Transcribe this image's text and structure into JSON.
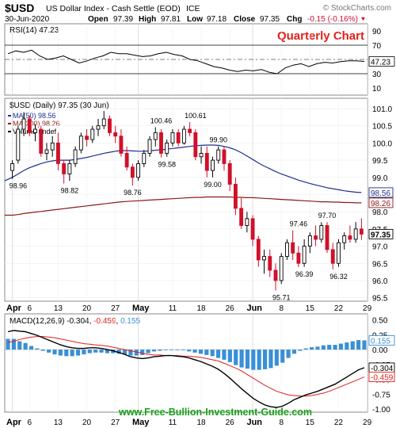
{
  "header": {
    "symbol": "$USD",
    "name": "US Dollar Index - Cash Settle (EOD)",
    "exchange": "ICE",
    "copyright": "© StockCharts.com",
    "date": "30-Jun-2020",
    "open_label": "Open",
    "open": "97.39",
    "high_label": "High",
    "high": "97.81",
    "low_label": "Low",
    "low": "97.18",
    "close_label": "Close",
    "close": "97.35",
    "chg_label": "Chg",
    "chg": "-0.15 (-0.16%)"
  },
  "annotation": "Quarterly Chart",
  "watermark": "www.Free-Bullion-Investment-Guide.com",
  "colors": {
    "up": "#000000",
    "down": "#d0102a",
    "ma50": "#1f2f8f",
    "ma200": "#8b1a1a",
    "rsi": "#000000",
    "macd": "#000000",
    "signal": "#e0201a",
    "hist": "#3a8fd6",
    "accent": "#e0201a"
  },
  "chart_data": [
    {
      "type": "line",
      "panel": "RSI",
      "title": "RSI(14) 47.23",
      "series": [
        {
          "name": "RSI(14)",
          "values": [
            58,
            62,
            60,
            63,
            55,
            50,
            52,
            55,
            50,
            45,
            48,
            52,
            55,
            60,
            58,
            58,
            56,
            54,
            55,
            58,
            60,
            57,
            55,
            50,
            48,
            44,
            40,
            38,
            35,
            33,
            35,
            34,
            36,
            32,
            30,
            38,
            42,
            44,
            40,
            44,
            46,
            45,
            47,
            48,
            48,
            47.23
          ]
        }
      ],
      "ylim": [
        0,
        100
      ],
      "ticks": [
        10,
        30,
        70,
        90
      ],
      "current_value": "47.23"
    },
    {
      "type": "candlestick",
      "panel": "Price",
      "title": "$USD (Daily) 97.35 (30 Jun)",
      "legend": [
        {
          "label": "MA(50) 98.56",
          "color": "#1f2f8f"
        },
        {
          "label": "MA(200) 98.26",
          "color": "#8b1a1a"
        },
        {
          "label": "Volume undef",
          "color": "#000000"
        }
      ],
      "x_ticks": [
        {
          "label": "Apr",
          "i": 0,
          "bold": true
        },
        {
          "label": "6",
          "i": 3
        },
        {
          "label": "13",
          "i": 8
        },
        {
          "label": "20",
          "i": 13
        },
        {
          "label": "27",
          "i": 18
        },
        {
          "label": "May",
          "i": 22,
          "bold": true
        },
        {
          "label": "11",
          "i": 28
        },
        {
          "label": "18",
          "i": 33
        },
        {
          "label": "26",
          "i": 38
        },
        {
          "label": "Jun",
          "i": 42,
          "bold": true
        },
        {
          "label": "8",
          "i": 47
        },
        {
          "label": "15",
          "i": 52
        },
        {
          "label": "22",
          "i": 57
        },
        {
          "label": "29",
          "i": 62
        }
      ],
      "ylim": [
        95.4,
        101.3
      ],
      "y_ticks": [
        95.5,
        96.0,
        96.5,
        97.0,
        97.5,
        98.0,
        98.5,
        99.0,
        99.5,
        100.0,
        100.5,
        101.0
      ],
      "candles": [
        [
          99.2,
          99.5,
          98.96,
          99.4
        ],
        [
          99.5,
          100.5,
          99.4,
          100.4
        ],
        [
          100.4,
          100.9,
          100.2,
          100.7
        ],
        [
          100.7,
          100.8,
          100.2,
          100.3
        ],
        [
          100.3,
          100.55,
          100.05,
          100.4
        ],
        [
          100.4,
          100.5,
          99.6,
          99.7
        ],
        [
          99.7,
          100.0,
          99.5,
          99.8
        ],
        [
          99.8,
          100.2,
          99.6,
          100.0
        ],
        [
          100.0,
          100.3,
          99.2,
          99.4
        ],
        [
          99.4,
          99.5,
          98.82,
          99.1
        ],
        [
          99.1,
          99.5,
          98.9,
          99.4
        ],
        [
          99.4,
          99.9,
          99.3,
          99.8
        ],
        [
          99.8,
          100.3,
          99.7,
          100.2
        ],
        [
          100.2,
          100.4,
          99.9,
          100.1
        ],
        [
          100.1,
          100.5,
          100.0,
          100.4
        ],
        [
          100.4,
          100.7,
          100.2,
          100.5
        ],
        [
          100.5,
          100.93,
          100.4,
          100.7
        ],
        [
          100.7,
          100.8,
          100.2,
          100.3
        ],
        [
          100.3,
          100.5,
          100.0,
          100.2
        ],
        [
          100.2,
          100.4,
          99.6,
          99.7
        ],
        [
          99.7,
          99.9,
          99.2,
          99.3
        ],
        [
          99.3,
          99.4,
          98.76,
          99.0
        ],
        [
          99.0,
          99.5,
          98.9,
          99.4
        ],
        [
          99.4,
          99.8,
          99.3,
          99.7
        ],
        [
          99.7,
          100.2,
          99.6,
          100.1
        ],
        [
          100.1,
          100.46,
          99.9,
          100.3
        ],
        [
          100.3,
          100.4,
          99.58,
          99.7
        ],
        [
          99.7,
          100.1,
          99.6,
          100.0
        ],
        [
          100.0,
          100.4,
          99.9,
          100.3
        ],
        [
          100.3,
          100.4,
          99.9,
          100.0
        ],
        [
          100.0,
          100.5,
          99.95,
          100.4
        ],
        [
          100.4,
          100.61,
          100.2,
          100.3
        ],
        [
          100.3,
          100.4,
          99.5,
          99.6
        ],
        [
          99.6,
          99.9,
          99.4,
          99.7
        ],
        [
          99.7,
          99.9,
          99.0,
          99.2
        ],
        [
          99.2,
          99.6,
          99.0,
          99.5
        ],
        [
          99.5,
          99.9,
          99.4,
          99.8
        ],
        [
          99.8,
          99.9,
          99.2,
          99.4
        ],
        [
          99.4,
          99.5,
          98.6,
          98.8
        ],
        [
          98.8,
          99.0,
          97.9,
          98.1
        ],
        [
          98.1,
          98.4,
          97.5,
          97.6
        ],
        [
          97.6,
          98.0,
          97.4,
          97.8
        ],
        [
          97.8,
          97.9,
          97.0,
          97.2
        ],
        [
          97.2,
          97.3,
          96.4,
          96.6
        ],
        [
          96.6,
          96.9,
          96.2,
          96.7
        ],
        [
          96.7,
          96.9,
          96.1,
          96.3
        ],
        [
          96.3,
          96.5,
          95.71,
          96.0
        ],
        [
          96.0,
          96.8,
          95.9,
          96.7
        ],
        [
          96.7,
          97.2,
          96.6,
          97.1
        ],
        [
          97.1,
          97.46,
          96.6,
          96.8
        ],
        [
          96.8,
          97.0,
          96.39,
          96.5
        ],
        [
          96.5,
          97.2,
          96.4,
          97.0
        ],
        [
          97.0,
          97.4,
          96.8,
          97.3
        ],
        [
          97.3,
          97.6,
          97.0,
          97.2
        ],
        [
          97.2,
          97.7,
          97.1,
          97.6
        ],
        [
          97.6,
          97.7,
          96.8,
          96.9
        ],
        [
          96.9,
          97.1,
          96.32,
          96.5
        ],
        [
          96.5,
          97.2,
          96.4,
          97.1
        ],
        [
          97.1,
          97.4,
          96.9,
          97.3
        ],
        [
          97.3,
          97.6,
          97.1,
          97.2
        ],
        [
          97.2,
          97.7,
          97.1,
          97.5
        ],
        [
          97.5,
          97.81,
          97.18,
          97.35
        ]
      ],
      "labels": [
        {
          "text": "98.96",
          "i": 1,
          "value": 98.96,
          "pos": "below"
        },
        {
          "text": "98.82",
          "i": 10,
          "value": 98.82,
          "pos": "below"
        },
        {
          "text": "98.76",
          "i": 21,
          "value": 98.76,
          "pos": "below"
        },
        {
          "text": "100.46",
          "i": 26,
          "value": 100.46,
          "pos": "above"
        },
        {
          "text": "99.58",
          "i": 27,
          "value": 99.58,
          "pos": "below"
        },
        {
          "text": "100.61",
          "i": 32,
          "value": 100.61,
          "pos": "above"
        },
        {
          "text": "99.90",
          "i": 36,
          "value": 99.9,
          "pos": "above"
        },
        {
          "text": "99.00",
          "i": 35,
          "value": 99.0,
          "pos": "below"
        },
        {
          "text": "95.71",
          "i": 47,
          "value": 95.71,
          "pos": "below"
        },
        {
          "text": "97.46",
          "i": 50,
          "value": 97.46,
          "pos": "above"
        },
        {
          "text": "96.39",
          "i": 51,
          "value": 96.39,
          "pos": "below"
        },
        {
          "text": "97.70",
          "i": 55,
          "value": 97.7,
          "pos": "above"
        },
        {
          "text": "96.32",
          "i": 57,
          "value": 96.32,
          "pos": "below"
        }
      ],
      "ma50": [
        99.0,
        99.1,
        99.2,
        99.28,
        99.34,
        99.4,
        99.45,
        99.48,
        99.5,
        99.5,
        99.5,
        99.52,
        99.55,
        99.58,
        99.62,
        99.66,
        99.7,
        99.73,
        99.76,
        99.78,
        99.78,
        99.77,
        99.76,
        99.76,
        99.77,
        99.79,
        99.8,
        99.82,
        99.84,
        99.86,
        99.88,
        99.9,
        99.92,
        99.93,
        99.94,
        99.94,
        99.93,
        99.9,
        99.86,
        99.8,
        99.72,
        99.62,
        99.52,
        99.42,
        99.33,
        99.25,
        99.17,
        99.1,
        99.04,
        98.98,
        98.92,
        98.87,
        98.82,
        98.78,
        98.74,
        98.7,
        98.67,
        98.64,
        98.61,
        98.59,
        98.57,
        98.56
      ],
      "ma200": [
        97.9,
        97.92,
        97.95,
        97.97,
        97.99,
        98.01,
        98.03,
        98.05,
        98.07,
        98.09,
        98.11,
        98.13,
        98.15,
        98.17,
        98.19,
        98.21,
        98.23,
        98.25,
        98.27,
        98.29,
        98.3,
        98.31,
        98.32,
        98.33,
        98.34,
        98.35,
        98.36,
        98.37,
        98.38,
        98.39,
        98.4,
        98.41,
        98.42,
        98.42,
        98.43,
        98.43,
        98.43,
        98.43,
        98.43,
        98.42,
        98.42,
        98.41,
        98.41,
        98.4,
        98.39,
        98.38,
        98.37,
        98.36,
        98.35,
        98.34,
        98.33,
        98.32,
        98.31,
        98.3,
        98.29,
        98.29,
        98.28,
        98.28,
        98.27,
        98.27,
        98.26,
        98.26
      ],
      "markers": [
        {
          "text": "98.56",
          "value": 98.56,
          "color": "#1f2f8f"
        },
        {
          "text": "98.26",
          "value": 98.26,
          "color": "#8b1a1a"
        },
        {
          "text": "97.35",
          "value": 97.35,
          "color": "#000000"
        }
      ]
    },
    {
      "type": "line",
      "panel": "MACD",
      "title_prefix": "MACD(12,26,9)",
      "title_macd": "-0.304",
      "title_signal": "-0.459",
      "title_hist": "0.155",
      "ylim": [
        -1.05,
        0.6
      ],
      "y_ticks": [
        0.5,
        0.25,
        0.0,
        -0.25,
        -0.5,
        -0.75,
        -1.0
      ],
      "tick_labels": [
        "0.50",
        "0.25",
        "0.00",
        "-0.25",
        "-0.50",
        "-0.75",
        "-1.00"
      ],
      "series": [
        {
          "name": "MACD",
          "values": [
            0.3,
            0.32,
            0.31,
            0.3,
            0.27,
            0.24,
            0.2,
            0.16,
            0.12,
            0.08,
            0.05,
            0.03,
            0.02,
            0.02,
            0.03,
            0.03,
            0.02,
            0.0,
            -0.02,
            -0.05,
            -0.08,
            -0.12,
            -0.14,
            -0.15,
            -0.14,
            -0.12,
            -0.11,
            -0.1,
            -0.1,
            -0.11,
            -0.12,
            -0.14,
            -0.17,
            -0.2,
            -0.24,
            -0.28,
            -0.33,
            -0.4,
            -0.48,
            -0.57,
            -0.66,
            -0.74,
            -0.82,
            -0.88,
            -0.93,
            -0.96,
            -0.97,
            -0.95,
            -0.9,
            -0.84,
            -0.8,
            -0.76,
            -0.73,
            -0.7,
            -0.66,
            -0.62,
            -0.58,
            -0.52,
            -0.46,
            -0.4,
            -0.34,
            -0.304
          ]
        },
        {
          "name": "Signal",
          "values": [
            0.12,
            0.14,
            0.17,
            0.19,
            0.21,
            0.22,
            0.22,
            0.21,
            0.2,
            0.18,
            0.16,
            0.14,
            0.12,
            0.1,
            0.09,
            0.08,
            0.07,
            0.06,
            0.04,
            0.02,
            0.0,
            -0.02,
            -0.04,
            -0.06,
            -0.08,
            -0.09,
            -0.09,
            -0.1,
            -0.1,
            -0.1,
            -0.11,
            -0.11,
            -0.12,
            -0.13,
            -0.15,
            -0.17,
            -0.19,
            -0.23,
            -0.27,
            -0.31,
            -0.36,
            -0.42,
            -0.48,
            -0.54,
            -0.6,
            -0.65,
            -0.7,
            -0.73,
            -0.76,
            -0.77,
            -0.78,
            -0.78,
            -0.77,
            -0.75,
            -0.73,
            -0.7,
            -0.66,
            -0.62,
            -0.58,
            -0.54,
            -0.5,
            -0.459
          ]
        }
      ],
      "markers": [
        {
          "text": "0.155",
          "value": 0.155,
          "color": "#3a8fd6"
        },
        {
          "text": "-0.304",
          "value": -0.304,
          "color": "#000000"
        },
        {
          "text": "-0.459",
          "value": -0.459,
          "color": "#e0201a"
        }
      ]
    }
  ]
}
